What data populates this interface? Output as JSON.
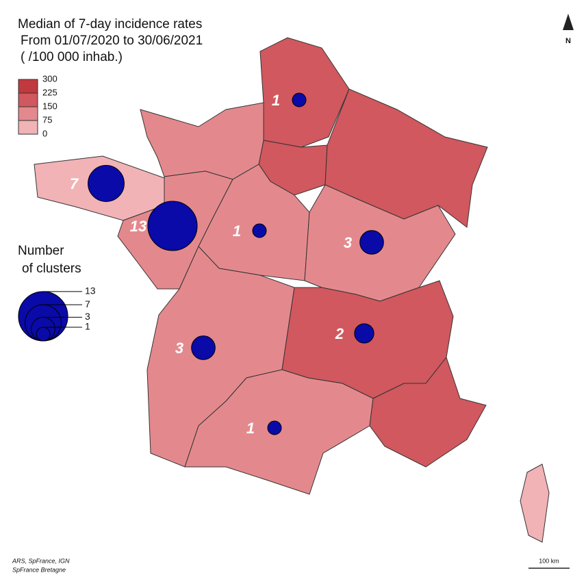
{
  "title": [
    "Median of 7-day incidence rates",
    "From 01/07/2020 to 30/06/2021",
    "( /100 000 inhab.)"
  ],
  "incidence_legend": {
    "labels": [
      300,
      225,
      150,
      75,
      0
    ]
  },
  "clusters_legend": {
    "title": [
      "Number",
      "of clusters"
    ],
    "values": [
      13,
      7,
      3,
      1
    ]
  },
  "clusters": [
    7,
    13,
    1,
    1,
    3,
    2,
    3,
    1
  ],
  "north": "N",
  "scale": "100 km",
  "sources": [
    "ARS, SpFrance, IGN",
    "SpFrance Bretagne"
  ]
}
